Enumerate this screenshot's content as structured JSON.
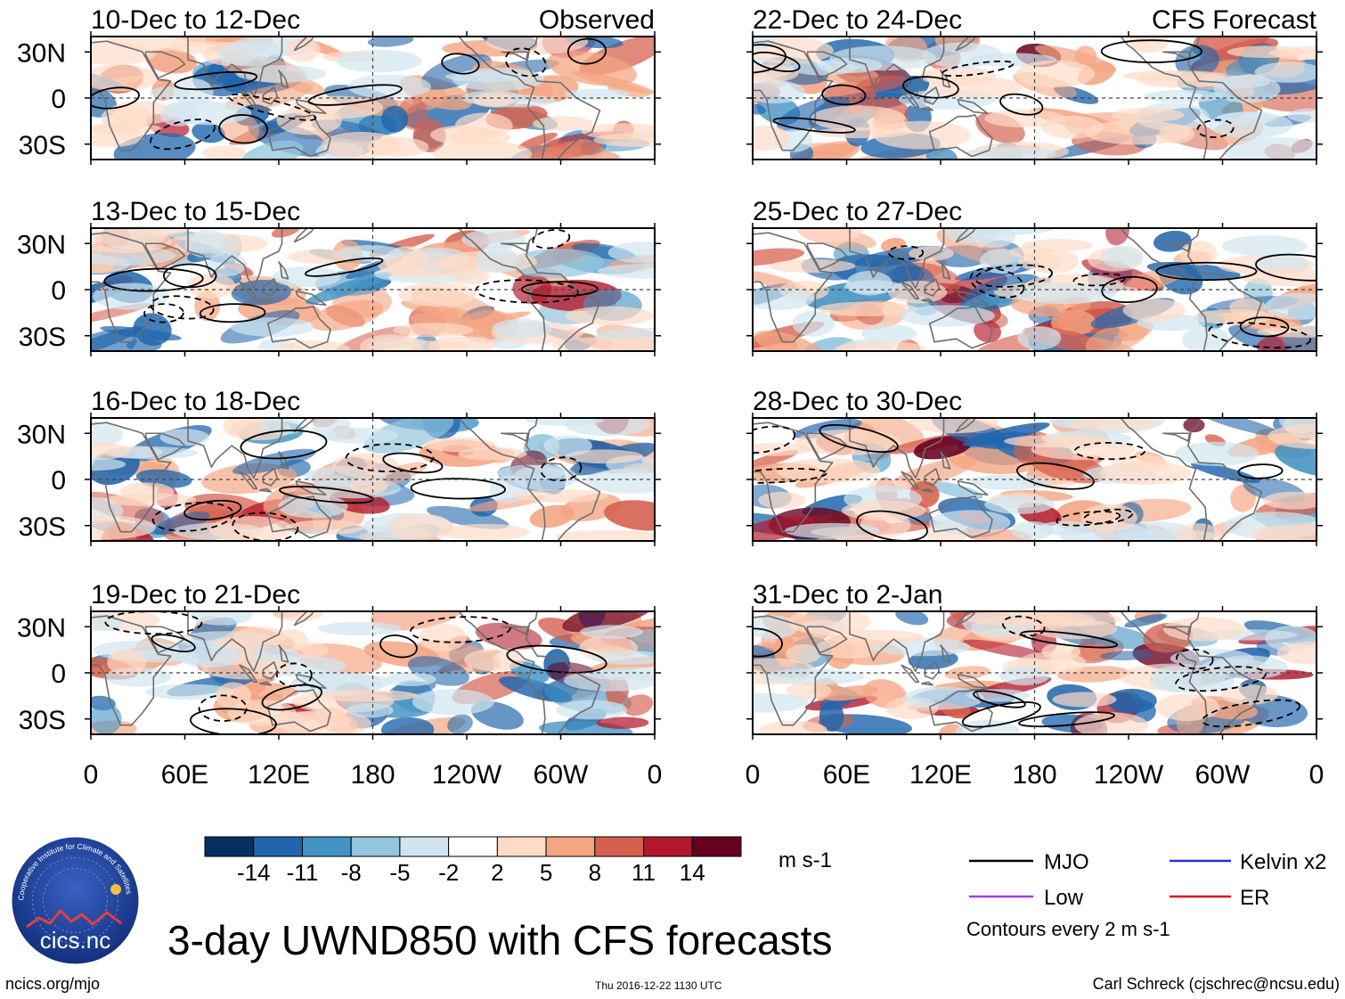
{
  "figure_title": "3-day UWND850 with CFS forecasts",
  "column_labels": {
    "observed": "Observed",
    "forecast": "CFS Forecast"
  },
  "footer": {
    "left": "ncics.org/mjo",
    "middle": "Thu 2016-12-22 1130 UTC",
    "right": "Carl Schreck (cjschrec@ncsu.edu)"
  },
  "logo_text": "cics.nc",
  "logo_ring_text": "Cooperative Institute for Climate and Satellites",
  "colorbar": {
    "units": "m s-1",
    "tick_labels": [
      "-14",
      "-11",
      "-8",
      "-5",
      "-2",
      "2",
      "5",
      "8",
      "11",
      "14"
    ],
    "colors": [
      "#053061",
      "#2166ac",
      "#4393c3",
      "#92c5de",
      "#d1e5f0",
      "#ffffff",
      "#fddbc7",
      "#f4a582",
      "#d6604d",
      "#b2182b",
      "#67001f"
    ]
  },
  "legend": {
    "items": [
      {
        "label": "MJO",
        "color": "#000000"
      },
      {
        "label": "Kelvin x2",
        "color": "#2b2bd6"
      },
      {
        "label": "Low",
        "color": "#a040e0"
      },
      {
        "label": "ER",
        "color": "#e01010"
      }
    ],
    "contour_note": "Contours every 2 m s-1"
  },
  "chart_data": {
    "type": "heatmap",
    "variable": "850-hPa zonal wind anomaly",
    "xlabel_ticks": [
      "0",
      "60E",
      "120E",
      "180",
      "120W",
      "60W",
      "0"
    ],
    "ylabel_ticks": [
      "30N",
      "0",
      "30S"
    ],
    "panels": [
      {
        "title": "10-Dec to 12-Dec",
        "source": "Observed"
      },
      {
        "title": "13-Dec to 15-Dec",
        "source": "Observed"
      },
      {
        "title": "16-Dec to 18-Dec",
        "source": "Observed"
      },
      {
        "title": "19-Dec to 21-Dec",
        "source": "Observed"
      },
      {
        "title": "22-Dec to 24-Dec",
        "source": "CFS Forecast"
      },
      {
        "title": "25-Dec to 27-Dec",
        "source": "CFS Forecast"
      },
      {
        "title": "28-Dec to 30-Dec",
        "source": "CFS Forecast"
      },
      {
        "title": "31-Dec to 2-Jan",
        "source": "CFS Forecast"
      }
    ]
  }
}
